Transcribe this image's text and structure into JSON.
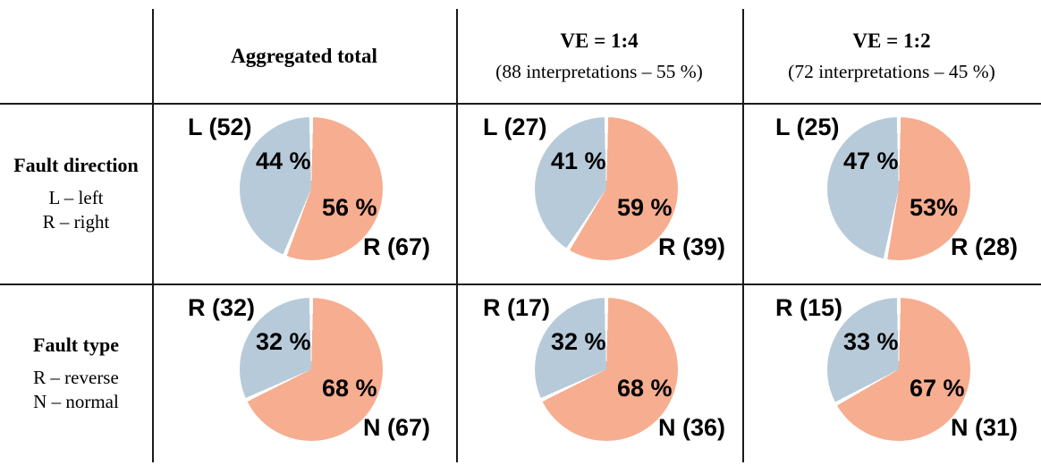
{
  "colors": {
    "slice_salmon": "#F6AD90",
    "slice_blue": "#B7CAD9",
    "grid_line": "#1a1a1a",
    "background": "#ffffff"
  },
  "table": {
    "columns": [
      {
        "title": "Aggregated total",
        "subtitle": ""
      },
      {
        "title": "VE = 1:4",
        "subtitle": "(88 interpretations – 55 %)"
      },
      {
        "title": "VE = 1:2",
        "subtitle": "(72 interpretations – 45 %)"
      }
    ],
    "rows": [
      {
        "title": "Fault direction",
        "legend": [
          "L – left",
          "R – right"
        ]
      },
      {
        "title": "Fault type",
        "legend": [
          "R – reverse",
          "N – normal"
        ]
      }
    ]
  },
  "chart_data": [
    {
      "type": "pie",
      "row": "Fault direction",
      "column": "Aggregated total",
      "start_angle": "12 o'clock, clockwise",
      "slices": [
        {
          "name": "R",
          "count": 67,
          "pct": 56,
          "pct_label": "56 %",
          "outer_label": "R (67)",
          "color_key": "slice_salmon"
        },
        {
          "name": "L",
          "count": 52,
          "pct": 44,
          "pct_label": "44 %",
          "outer_label": "L (52)",
          "color_key": "slice_blue"
        }
      ]
    },
    {
      "type": "pie",
      "row": "Fault direction",
      "column": "VE = 1:4",
      "start_angle": "12 o'clock, clockwise",
      "slices": [
        {
          "name": "R",
          "count": 39,
          "pct": 59,
          "pct_label": "59 %",
          "outer_label": "R (39)",
          "color_key": "slice_salmon"
        },
        {
          "name": "L",
          "count": 27,
          "pct": 41,
          "pct_label": "41 %",
          "outer_label": "L (27)",
          "color_key": "slice_blue"
        }
      ]
    },
    {
      "type": "pie",
      "row": "Fault direction",
      "column": "VE = 1:2",
      "start_angle": "12 o'clock, clockwise",
      "slices": [
        {
          "name": "R",
          "count": 28,
          "pct": 53,
          "pct_label": "53%",
          "outer_label": "R (28)",
          "color_key": "slice_salmon"
        },
        {
          "name": "L",
          "count": 25,
          "pct": 47,
          "pct_label": "47 %",
          "outer_label": "L (25)",
          "color_key": "slice_blue"
        }
      ]
    },
    {
      "type": "pie",
      "row": "Fault type",
      "column": "Aggregated total",
      "start_angle": "12 o'clock, clockwise",
      "slices": [
        {
          "name": "N",
          "count": 67,
          "pct": 68,
          "pct_label": "68 %",
          "outer_label": "N (67)",
          "color_key": "slice_salmon"
        },
        {
          "name": "R",
          "count": 32,
          "pct": 32,
          "pct_label": "32 %",
          "outer_label": "R (32)",
          "color_key": "slice_blue"
        }
      ]
    },
    {
      "type": "pie",
      "row": "Fault type",
      "column": "VE = 1:4",
      "start_angle": "12 o'clock, clockwise",
      "slices": [
        {
          "name": "N",
          "count": 36,
          "pct": 68,
          "pct_label": "68 %",
          "outer_label": "N (36)",
          "color_key": "slice_salmon"
        },
        {
          "name": "R",
          "count": 17,
          "pct": 32,
          "pct_label": "32 %",
          "outer_label": "R (17)",
          "color_key": "slice_blue"
        }
      ]
    },
    {
      "type": "pie",
      "row": "Fault type",
      "column": "VE = 1:2",
      "start_angle": "12 o'clock, clockwise",
      "slices": [
        {
          "name": "N",
          "count": 31,
          "pct": 67,
          "pct_label": "67 %",
          "outer_label": "N (31)",
          "color_key": "slice_salmon"
        },
        {
          "name": "R",
          "count": 15,
          "pct": 33,
          "pct_label": "33 %",
          "outer_label": "R (15)",
          "color_key": "slice_blue"
        }
      ]
    }
  ]
}
